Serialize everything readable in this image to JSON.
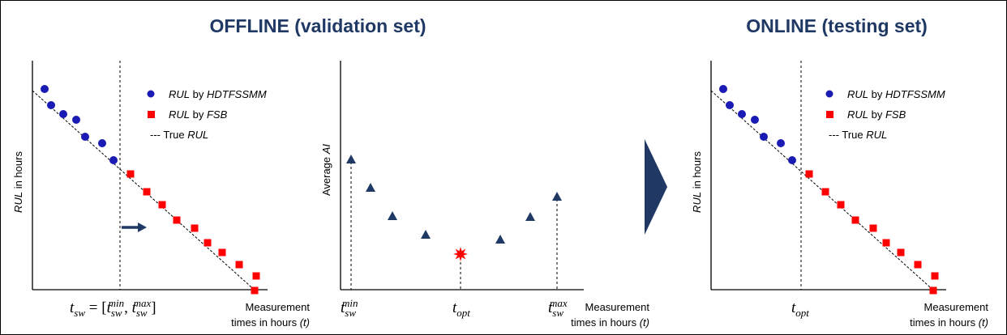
{
  "header": {
    "offline_title": "OFFLINE (validation set)",
    "online_title": "ONLINE (testing set)"
  },
  "panels": [
    {
      "y_label": {
        "var": "RUL",
        "rest": " in hours"
      },
      "x_label": {
        "line1": "Measurement",
        "line2": "times in hours ",
        "var": "(t)"
      },
      "legend": [
        {
          "var": "RUL",
          "by": " by ",
          "method": "HDTFSSMM"
        },
        {
          "var": "RUL",
          "by": " by ",
          "method": "FSB"
        },
        {
          "prefix": "--- True ",
          "var": "RUL"
        }
      ],
      "marker": {
        "t": "t",
        "sub": "sw",
        "eq": " = [",
        "t1": "t",
        "sub1": "sw",
        "sup1": "min",
        "comma": ", ",
        "t2": "t",
        "sub2": "sw",
        "sup2": "max",
        "close": "]"
      }
    },
    {
      "y_label": {
        "prefix": "Average ",
        "var": "AI"
      },
      "x_label": {
        "line1": "Measurement",
        "line2": "times in hours ",
        "var": "(t)"
      },
      "markers": [
        {
          "t": "t",
          "sub": "sw",
          "sup": "min"
        },
        {
          "t": "t",
          "sub": "opt"
        },
        {
          "t": "t",
          "sub": "sw",
          "sup": "max"
        }
      ]
    },
    {
      "y_label": {
        "var": "RUL",
        "rest": " in hours"
      },
      "x_label": {
        "line1": "Measurement",
        "line2": "times in hours ",
        "var": "(t)"
      },
      "legend": [
        {
          "var": "RUL",
          "by": " by ",
          "method": "HDTFSSMM"
        },
        {
          "var": "RUL",
          "by": " by ",
          "method": "FSB"
        },
        {
          "prefix": "--- True ",
          "var": "RUL"
        }
      ],
      "marker": {
        "t": "t",
        "sub": "opt"
      }
    }
  ]
}
